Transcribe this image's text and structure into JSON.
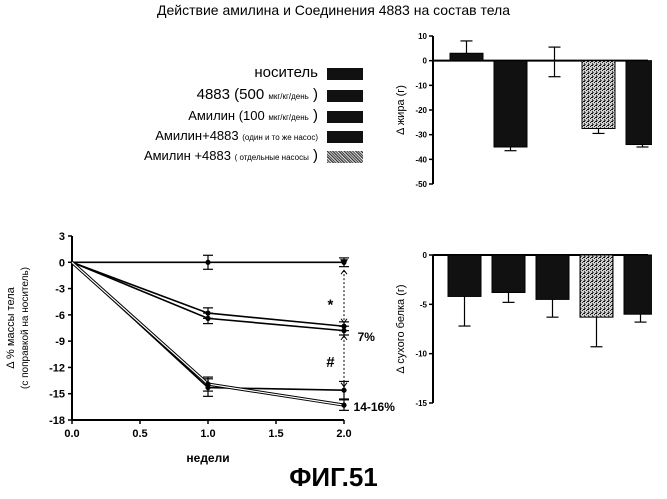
{
  "title": "Действие амилина и Соединения 4883 на состав тела",
  "figure_label": "ФИГ.51",
  "legend": [
    {
      "parts": [
        {
          "text": "носитель",
          "size": "big"
        }
      ],
      "fill": "solid"
    },
    {
      "parts": [
        {
          "text": "4883 (500 ",
          "size": "big"
        },
        {
          "text": "мкг/кг/день",
          "size": "small"
        },
        {
          "text": "   )",
          "size": "big"
        }
      ],
      "fill": "solid"
    },
    {
      "parts": [
        {
          "text": "Амилин (100 ",
          "size": "mid"
        },
        {
          "text": "мкг/кг/день",
          "size": "small"
        },
        {
          "text": "  )",
          "size": "big"
        }
      ],
      "fill": "solid"
    },
    {
      "parts": [
        {
          "text": "Амилин+4883 ",
          "size": "mid"
        },
        {
          "text": "(один и то же насос)",
          "size": "small"
        }
      ],
      "fill": "solid"
    },
    {
      "parts": [
        {
          "text": "Амилин +4883 ",
          "size": "mid"
        },
        {
          "text": "( отдельные насосы",
          "size": "small"
        },
        {
          "text": "   )",
          "size": "big"
        }
      ],
      "fill": "pattern"
    }
  ],
  "colors": {
    "solid": "#111111",
    "pattern_dark": "#333333",
    "pattern_light": "#cccccc",
    "axis": "#000000"
  },
  "chart_data": [
    {
      "type": "bar",
      "name": "fat",
      "ylabel": "Δ жира (г)",
      "ylim": [
        -50,
        10
      ],
      "yticks": [
        10,
        0,
        -10,
        -20,
        -30,
        -40,
        -50
      ],
      "bars": [
        {
          "value": 3,
          "err": 5,
          "fill": "solid"
        },
        {
          "value": -35,
          "err": 1.5,
          "fill": "solid"
        },
        {
          "value": -0.5,
          "err": 6,
          "fill": "none"
        },
        {
          "value": -27.5,
          "err": 2,
          "fill": "pattern"
        },
        {
          "value": -34,
          "err": 1,
          "fill": "solid"
        }
      ]
    },
    {
      "type": "line",
      "name": "body_weight",
      "ylabel": "Δ %  массы тела",
      "ylabel2": "(с поправкой на носитель)",
      "xlabel": "недели",
      "xlim": [
        0,
        2
      ],
      "ylim": [
        -18,
        3
      ],
      "xticks": [
        "0.0",
        "0.5",
        "1.0",
        "1.5",
        "2.0"
      ],
      "yticks": [
        3,
        0,
        -3,
        -6,
        -9,
        -12,
        -15,
        -18
      ],
      "series": [
        {
          "x": [
            0,
            1,
            2
          ],
          "y": [
            0,
            0,
            0
          ],
          "err": [
            0,
            0.8,
            0.5
          ],
          "style": "solid"
        },
        {
          "x": [
            0,
            1,
            2
          ],
          "y": [
            0,
            -5.8,
            -7.3
          ],
          "err": [
            0,
            0.6,
            0.5
          ],
          "style": "solid"
        },
        {
          "x": [
            0,
            1,
            2
          ],
          "y": [
            0,
            -6.4,
            -7.8
          ],
          "err": [
            0,
            0.6,
            0.5
          ],
          "style": "solid"
        },
        {
          "x": [
            0,
            1,
            2
          ],
          "y": [
            0,
            -14.3,
            -14.6
          ],
          "err": [
            0,
            1,
            1
          ],
          "style": "solid"
        },
        {
          "x": [
            0,
            1,
            2
          ],
          "y": [
            0,
            -13.9,
            -16.3
          ],
          "err": [
            0,
            0.8,
            0.6
          ],
          "style": "double"
        }
      ],
      "annotations": [
        {
          "text": "*",
          "x": 1.9,
          "y": -4.8
        },
        {
          "text": "#",
          "x": 1.9,
          "y": -11.4
        },
        {
          "text": "7%",
          "x": 2.1,
          "y": -8.4
        },
        {
          "text": "14-16%",
          "x": 2.07,
          "y": -16.4
        }
      ]
    },
    {
      "type": "bar",
      "name": "lean",
      "ylabel": "Δ сухого белка (г)",
      "ylim": [
        -15,
        0
      ],
      "yticks": [
        0,
        -5,
        -10,
        -15
      ],
      "bars": [
        {
          "value": -4.2,
          "err": 3,
          "fill": "solid"
        },
        {
          "value": -3.8,
          "err": 1,
          "fill": "solid"
        },
        {
          "value": -4.5,
          "err": 1.8,
          "fill": "solid"
        },
        {
          "value": -6.3,
          "err": 3,
          "fill": "pattern"
        },
        {
          "value": -6.0,
          "err": 0.8,
          "fill": "solid"
        }
      ]
    }
  ]
}
